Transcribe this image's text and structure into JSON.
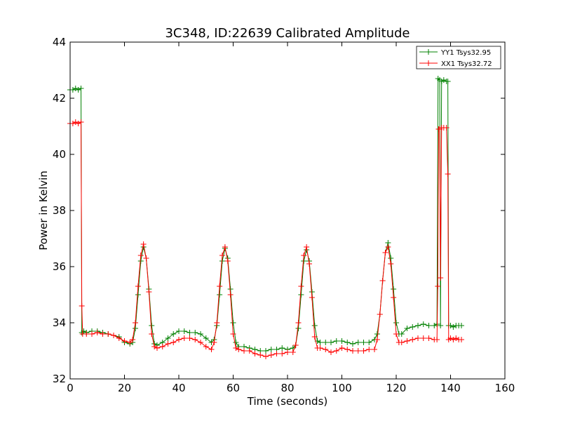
{
  "chart_data": {
    "type": "line",
    "title": "3C348, ID:22639 Calibrated Amplitude",
    "xlabel": "Time (seconds)",
    "ylabel": "Power in Kelvin",
    "xlim": [
      0,
      160
    ],
    "ylim": [
      32,
      44
    ],
    "xticks": [
      "0",
      "20",
      "40",
      "60",
      "80",
      "100",
      "120",
      "140",
      "160"
    ],
    "yticks": [
      "32",
      "34",
      "36",
      "38",
      "40",
      "42",
      "44"
    ],
    "grid": false,
    "legend_position": "top-right",
    "series": [
      {
        "name": "YY1 Tsys32.95",
        "color": "#008000",
        "points": [
          [
            0,
            42.3
          ],
          [
            1,
            42.3
          ],
          [
            2,
            42.35
          ],
          [
            3,
            42.3
          ],
          [
            4,
            42.35
          ],
          [
            4.3,
            33.65
          ],
          [
            5,
            33.7
          ],
          [
            6,
            33.65
          ],
          [
            8,
            33.7
          ],
          [
            10,
            33.7
          ],
          [
            12,
            33.65
          ],
          [
            14,
            33.6
          ],
          [
            16,
            33.55
          ],
          [
            18,
            33.5
          ],
          [
            20,
            33.3
          ],
          [
            22,
            33.25
          ],
          [
            23,
            33.3
          ],
          [
            24,
            33.8
          ],
          [
            25,
            35.0
          ],
          [
            26,
            36.2
          ],
          [
            27,
            36.7
          ],
          [
            28,
            36.3
          ],
          [
            29,
            35.2
          ],
          [
            30,
            33.9
          ],
          [
            31,
            33.25
          ],
          [
            32,
            33.2
          ],
          [
            34,
            33.3
          ],
          [
            36,
            33.45
          ],
          [
            38,
            33.6
          ],
          [
            40,
            33.7
          ],
          [
            42,
            33.7
          ],
          [
            44,
            33.65
          ],
          [
            46,
            33.65
          ],
          [
            48,
            33.6
          ],
          [
            50,
            33.45
          ],
          [
            52,
            33.3
          ],
          [
            53,
            33.4
          ],
          [
            54,
            33.9
          ],
          [
            55,
            35.0
          ],
          [
            56,
            36.2
          ],
          [
            57,
            36.65
          ],
          [
            58,
            36.3
          ],
          [
            59,
            35.2
          ],
          [
            60,
            34.0
          ],
          [
            61,
            33.3
          ],
          [
            62,
            33.15
          ],
          [
            64,
            33.15
          ],
          [
            66,
            33.1
          ],
          [
            68,
            33.05
          ],
          [
            70,
            33.0
          ],
          [
            72,
            33.0
          ],
          [
            74,
            33.05
          ],
          [
            76,
            33.05
          ],
          [
            78,
            33.1
          ],
          [
            80,
            33.05
          ],
          [
            82,
            33.1
          ],
          [
            83,
            33.2
          ],
          [
            84,
            33.8
          ],
          [
            85,
            35.0
          ],
          [
            86,
            36.2
          ],
          [
            87,
            36.6
          ],
          [
            88,
            36.2
          ],
          [
            89,
            35.1
          ],
          [
            90,
            33.9
          ],
          [
            91,
            33.35
          ],
          [
            92,
            33.3
          ],
          [
            94,
            33.3
          ],
          [
            96,
            33.3
          ],
          [
            98,
            33.35
          ],
          [
            100,
            33.35
          ],
          [
            102,
            33.3
          ],
          [
            104,
            33.25
          ],
          [
            106,
            33.3
          ],
          [
            108,
            33.3
          ],
          [
            110,
            33.3
          ],
          [
            112,
            33.4
          ],
          [
            113,
            33.6
          ],
          [
            114,
            34.3
          ],
          [
            115,
            35.5
          ],
          [
            116,
            36.5
          ],
          [
            117,
            36.85
          ],
          [
            118,
            36.3
          ],
          [
            119,
            35.2
          ],
          [
            120,
            34.0
          ],
          [
            121,
            33.6
          ],
          [
            122,
            33.6
          ],
          [
            124,
            33.8
          ],
          [
            126,
            33.85
          ],
          [
            128,
            33.9
          ],
          [
            130,
            33.95
          ],
          [
            132,
            33.9
          ],
          [
            134,
            33.9
          ],
          [
            135,
            33.95
          ],
          [
            135.4,
            42.7
          ],
          [
            136,
            42.65
          ],
          [
            136.3,
            33.9
          ],
          [
            136.7,
            42.6
          ],
          [
            137.5,
            42.65
          ],
          [
            138.5,
            42.6
          ],
          [
            139,
            42.6
          ],
          [
            139.3,
            33.9
          ],
          [
            140,
            33.9
          ],
          [
            141,
            33.85
          ],
          [
            142,
            33.9
          ],
          [
            143,
            33.9
          ],
          [
            144,
            33.9
          ]
        ]
      },
      {
        "name": "XX1 Tsys32.72",
        "color": "#ff0000",
        "points": [
          [
            0,
            41.1
          ],
          [
            1,
            41.1
          ],
          [
            2,
            41.15
          ],
          [
            3,
            41.1
          ],
          [
            4,
            41.15
          ],
          [
            4.3,
            34.6
          ],
          [
            4.6,
            33.6
          ],
          [
            6,
            33.6
          ],
          [
            8,
            33.6
          ],
          [
            10,
            33.65
          ],
          [
            12,
            33.6
          ],
          [
            14,
            33.6
          ],
          [
            16,
            33.55
          ],
          [
            18,
            33.45
          ],
          [
            20,
            33.35
          ],
          [
            22,
            33.3
          ],
          [
            23,
            33.4
          ],
          [
            24,
            34.0
          ],
          [
            25,
            35.3
          ],
          [
            26,
            36.4
          ],
          [
            27,
            36.8
          ],
          [
            28,
            36.3
          ],
          [
            29,
            35.1
          ],
          [
            30,
            33.6
          ],
          [
            31,
            33.15
          ],
          [
            32,
            33.1
          ],
          [
            34,
            33.15
          ],
          [
            36,
            33.25
          ],
          [
            38,
            33.3
          ],
          [
            40,
            33.4
          ],
          [
            42,
            33.45
          ],
          [
            44,
            33.45
          ],
          [
            46,
            33.4
          ],
          [
            48,
            33.3
          ],
          [
            50,
            33.15
          ],
          [
            52,
            33.05
          ],
          [
            53,
            33.3
          ],
          [
            54,
            34.0
          ],
          [
            55,
            35.3
          ],
          [
            56,
            36.4
          ],
          [
            57,
            36.7
          ],
          [
            58,
            36.2
          ],
          [
            59,
            35.0
          ],
          [
            60,
            33.6
          ],
          [
            61,
            33.1
          ],
          [
            62,
            33.05
          ],
          [
            64,
            33.0
          ],
          [
            66,
            33.0
          ],
          [
            68,
            32.9
          ],
          [
            70,
            32.85
          ],
          [
            72,
            32.8
          ],
          [
            74,
            32.85
          ],
          [
            76,
            32.9
          ],
          [
            78,
            32.9
          ],
          [
            80,
            32.95
          ],
          [
            82,
            32.95
          ],
          [
            83,
            33.2
          ],
          [
            84,
            34.0
          ],
          [
            85,
            35.3
          ],
          [
            86,
            36.4
          ],
          [
            87,
            36.7
          ],
          [
            88,
            36.1
          ],
          [
            89,
            34.9
          ],
          [
            90,
            33.5
          ],
          [
            91,
            33.1
          ],
          [
            92,
            33.1
          ],
          [
            94,
            33.05
          ],
          [
            96,
            32.95
          ],
          [
            98,
            33.0
          ],
          [
            100,
            33.1
          ],
          [
            102,
            33.05
          ],
          [
            104,
            33.0
          ],
          [
            106,
            33.0
          ],
          [
            108,
            33.0
          ],
          [
            110,
            33.05
          ],
          [
            112,
            33.05
          ],
          [
            113,
            33.4
          ],
          [
            114,
            34.3
          ],
          [
            115,
            35.5
          ],
          [
            116,
            36.5
          ],
          [
            117,
            36.7
          ],
          [
            118,
            36.1
          ],
          [
            119,
            34.9
          ],
          [
            120,
            33.6
          ],
          [
            121,
            33.3
          ],
          [
            122,
            33.3
          ],
          [
            124,
            33.35
          ],
          [
            126,
            33.4
          ],
          [
            128,
            33.45
          ],
          [
            130,
            33.45
          ],
          [
            132,
            33.45
          ],
          [
            134,
            33.4
          ],
          [
            135,
            33.4
          ],
          [
            135.3,
            35.3
          ],
          [
            135.6,
            40.9
          ],
          [
            136,
            40.9
          ],
          [
            136.3,
            35.6
          ],
          [
            136.7,
            40.95
          ],
          [
            137.5,
            40.95
          ],
          [
            138.5,
            40.95
          ],
          [
            139,
            39.3
          ],
          [
            139.3,
            33.4
          ],
          [
            140,
            33.45
          ],
          [
            141,
            33.4
          ],
          [
            142,
            33.45
          ],
          [
            143,
            33.4
          ],
          [
            144,
            33.4
          ]
        ]
      }
    ]
  }
}
